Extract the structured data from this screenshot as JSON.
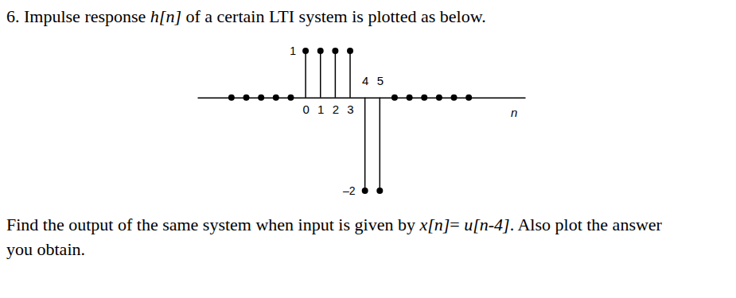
{
  "heading": [
    {
      "text": "6. Impulse response "
    },
    {
      "math": "h[n]"
    },
    {
      "text": " of a certain LTI system is plotted as below."
    }
  ],
  "chart_data": {
    "type": "stem",
    "x": [
      -5,
      -4,
      -3,
      -2,
      -1,
      0,
      1,
      2,
      3,
      4,
      5,
      6,
      7,
      8,
      9,
      10,
      11
    ],
    "values": [
      0,
      0,
      0,
      0,
      0,
      1,
      1,
      1,
      1,
      -2,
      -2,
      0,
      0,
      0,
      0,
      0,
      0
    ],
    "xlim": [
      -7.3,
      14.8
    ],
    "ylim": [
      -2,
      1
    ],
    "xticks": [
      0,
      1,
      2,
      3,
      4,
      5
    ],
    "yticks": [
      1,
      {
        "value": -2,
        "label": "–2"
      }
    ],
    "xlabel": "n",
    "color": "#000000"
  },
  "body": [
    [
      {
        "text": "Find the output of the same system when input is given by "
      },
      {
        "math": "x[n]"
      },
      {
        "text": "= "
      },
      {
        "math": "u[n-4]"
      },
      {
        "text": ". Also plot the answer"
      }
    ],
    [
      {
        "text": "you obtain."
      }
    ]
  ]
}
